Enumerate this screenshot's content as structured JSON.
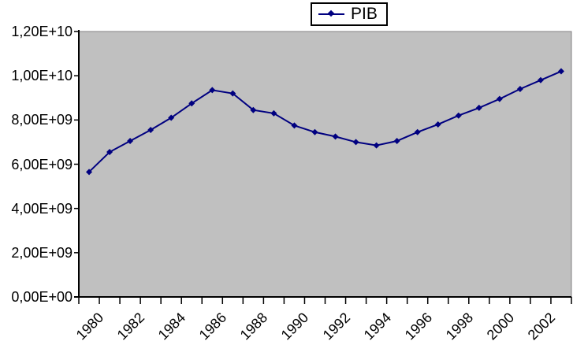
{
  "chart_data": {
    "type": "line",
    "title": "",
    "legend": {
      "label": "PIB",
      "position": "top"
    },
    "categories": [
      "1980",
      "1981",
      "1982",
      "1983",
      "1984",
      "1985",
      "1986",
      "1987",
      "1988",
      "1989",
      "1990",
      "1991",
      "1992",
      "1993",
      "1994",
      "1995",
      "1996",
      "1997",
      "1998",
      "1999",
      "2000",
      "2001",
      "2002",
      "2003"
    ],
    "series": [
      {
        "name": "PIB",
        "marker": "diamond",
        "values": [
          5650000000,
          6550000000,
          7050000000,
          7550000000,
          8100000000,
          8750000000,
          9350000000,
          9200000000,
          8450000000,
          8300000000,
          7750000000,
          7450000000,
          7250000000,
          7000000000,
          6850000000,
          7050000000,
          7450000000,
          7800000000,
          8200000000,
          8550000000,
          8950000000,
          9400000000,
          9800000000,
          10200000000
        ]
      }
    ],
    "x_axis": {
      "tick_labels": [
        "1980",
        "1982",
        "1984",
        "1986",
        "1988",
        "1990",
        "1992",
        "1994",
        "1996",
        "1998",
        "2000",
        "2002"
      ],
      "label_interval": 2,
      "label_rotation_deg": -45
    },
    "y_axis": {
      "min": 0,
      "max": 12000000000,
      "step": 2000000000,
      "tick_labels": [
        "0,00E+00",
        "2,00E+09",
        "4,00E+09",
        "6,00E+09",
        "8,00E+09",
        "1,00E+10",
        "1,20E+10"
      ]
    },
    "grid": false,
    "colors": {
      "series_line": "#000080",
      "plot_background": "#c0c0c0",
      "plot_border": "#848284",
      "axis": "#000000",
      "legend_border": "#000000",
      "text": "#000000"
    }
  }
}
